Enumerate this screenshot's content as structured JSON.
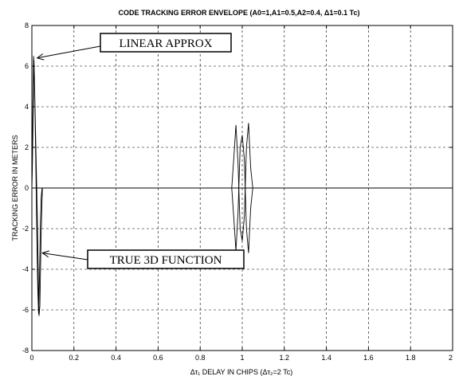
{
  "chart_data": {
    "type": "line",
    "title": "CODE TRACKING ERROR ENVELOPE (A0=1,A1=0.5,A2=0.4, Δ1=0.1 Tc)",
    "xlabel": "Δτ₁ DELAY IN CHIPS (Δτ₂=2 Tc)",
    "ylabel": "TRACKING ERROR IN METERS",
    "xlim": [
      0,
      2
    ],
    "ylim": [
      -8,
      8
    ],
    "xticks": [
      "0",
      "0.2",
      "0.4",
      "0.6",
      "0.8",
      "1",
      "1.2",
      "1.4",
      "1.6",
      "1.8",
      "2"
    ],
    "xtick_values": [
      0,
      0.2,
      0.4,
      0.6,
      0.8,
      1.0,
      1.2,
      1.4,
      1.6,
      1.8,
      2.0
    ],
    "yticks": [
      "8",
      "6",
      "4",
      "2",
      "0",
      "-2",
      "-4",
      "-6",
      "-8"
    ],
    "ytick_values": [
      8,
      6,
      4,
      2,
      0,
      -2,
      -4,
      -6,
      -8
    ],
    "grid": true,
    "series": [
      {
        "x": [
          0,
          0.004,
          0.008,
          0.012,
          0.016,
          0.02,
          0.024,
          0.028,
          0.032,
          0.036,
          0.04,
          0.044,
          0.048,
          0.05,
          0.05,
          0.046,
          0.042,
          0.038,
          0.034,
          0.03,
          0.026,
          0.022,
          0.018,
          0.014,
          0.01,
          0.006,
          0.002,
          0
        ],
        "y": [
          0,
          3.2,
          6.5,
          5.5,
          3.0,
          0.3,
          -2.6,
          -5.0,
          -6.2,
          -4.5,
          -2.0,
          -0.5,
          -0.05,
          0,
          0,
          -1.5,
          -3.5,
          -5.8,
          -6.3,
          -4.0,
          -1.5,
          0.5,
          2.5,
          4.5,
          6.3,
          3.5,
          0.8,
          0
        ]
      },
      {
        "x": [
          0.95,
          0.96,
          0.97,
          0.98,
          0.99,
          1.0,
          1.01,
          1.02,
          1.03,
          1.04,
          1.05
        ],
        "y": [
          0,
          1.5,
          3.1,
          1.2,
          -2.0,
          -2.6,
          -1.4,
          2.0,
          3.2,
          1.0,
          0
        ]
      },
      {
        "x": [
          0.95,
          0.96,
          0.97,
          0.98,
          0.99,
          1.0,
          1.01,
          1.02,
          1.03,
          1.04,
          1.05
        ],
        "y": [
          0,
          -1.5,
          -3.1,
          -1.2,
          2.0,
          2.6,
          1.4,
          -2.0,
          -3.2,
          -1.0,
          0
        ]
      }
    ],
    "baseline": {
      "x": [
        0,
        2
      ],
      "y": [
        0,
        0
      ]
    },
    "annotations": [
      {
        "text": "LINEAR APPROX",
        "target": [
          0.01,
          6.4
        ]
      },
      {
        "text": "TRUE 3D FUNCTION",
        "target": [
          0.035,
          -3.2
        ]
      }
    ]
  }
}
